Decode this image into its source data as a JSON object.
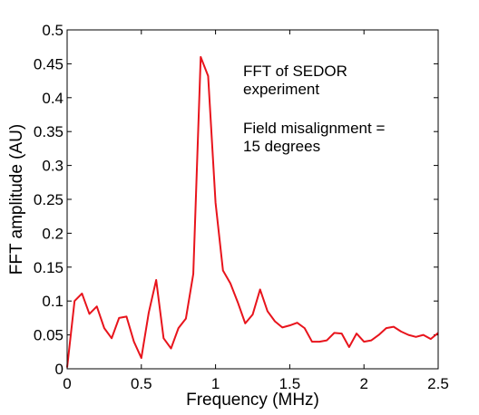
{
  "chart_data": {
    "type": "line",
    "title": "",
    "xlabel": "Frequency (MHz)",
    "ylabel": "FFT amplitude (AU)",
    "xlim": [
      0,
      2.5
    ],
    "ylim": [
      0,
      0.5
    ],
    "x_ticks": [
      0,
      0.5,
      1,
      1.5,
      2,
      2.5
    ],
    "x_tick_labels": [
      "0",
      "0.5",
      "1",
      "1.5",
      "2",
      "2.5"
    ],
    "y_ticks": [
      0,
      0.05,
      0.1,
      0.15,
      0.2,
      0.25,
      0.3,
      0.35,
      0.4,
      0.45,
      0.5
    ],
    "y_tick_labels": [
      "0",
      "0.05",
      "0.1",
      "0.15",
      "0.2",
      "0.25",
      "0.3",
      "0.35",
      "0.4",
      "0.45",
      "0.5"
    ],
    "grid": false,
    "series": [
      {
        "color": "#e8141c",
        "x": [
          0,
          0.05,
          0.1,
          0.15,
          0.2,
          0.25,
          0.3,
          0.35,
          0.4,
          0.45,
          0.5,
          0.55,
          0.6,
          0.65,
          0.7,
          0.75,
          0.8,
          0.85,
          0.9,
          0.95,
          1.0,
          1.05,
          1.1,
          1.15,
          1.2,
          1.25,
          1.3,
          1.35,
          1.4,
          1.45,
          1.5,
          1.55,
          1.6,
          1.65,
          1.7,
          1.75,
          1.8,
          1.85,
          1.9,
          1.95,
          2.0,
          2.05,
          2.1,
          2.15,
          2.2,
          2.25,
          2.3,
          2.35,
          2.4,
          2.45,
          2.5
        ],
        "y": [
          0.002,
          0.1,
          0.111,
          0.081,
          0.092,
          0.06,
          0.045,
          0.075,
          0.077,
          0.04,
          0.016,
          0.083,
          0.131,
          0.045,
          0.03,
          0.06,
          0.074,
          0.14,
          0.46,
          0.432,
          0.245,
          0.145,
          0.126,
          0.098,
          0.067,
          0.08,
          0.117,
          0.085,
          0.07,
          0.061,
          0.064,
          0.068,
          0.06,
          0.04,
          0.04,
          0.042,
          0.053,
          0.052,
          0.032,
          0.052,
          0.04,
          0.042,
          0.05,
          0.06,
          0.062,
          0.055,
          0.05,
          0.047,
          0.05,
          0.044,
          0.053
        ]
      }
    ],
    "annotations": [
      {
        "lines": [
          "FFT of SEDOR",
          "experiment"
        ]
      },
      {
        "lines": [
          "Field misalignment =",
          "15 degrees"
        ]
      }
    ]
  }
}
